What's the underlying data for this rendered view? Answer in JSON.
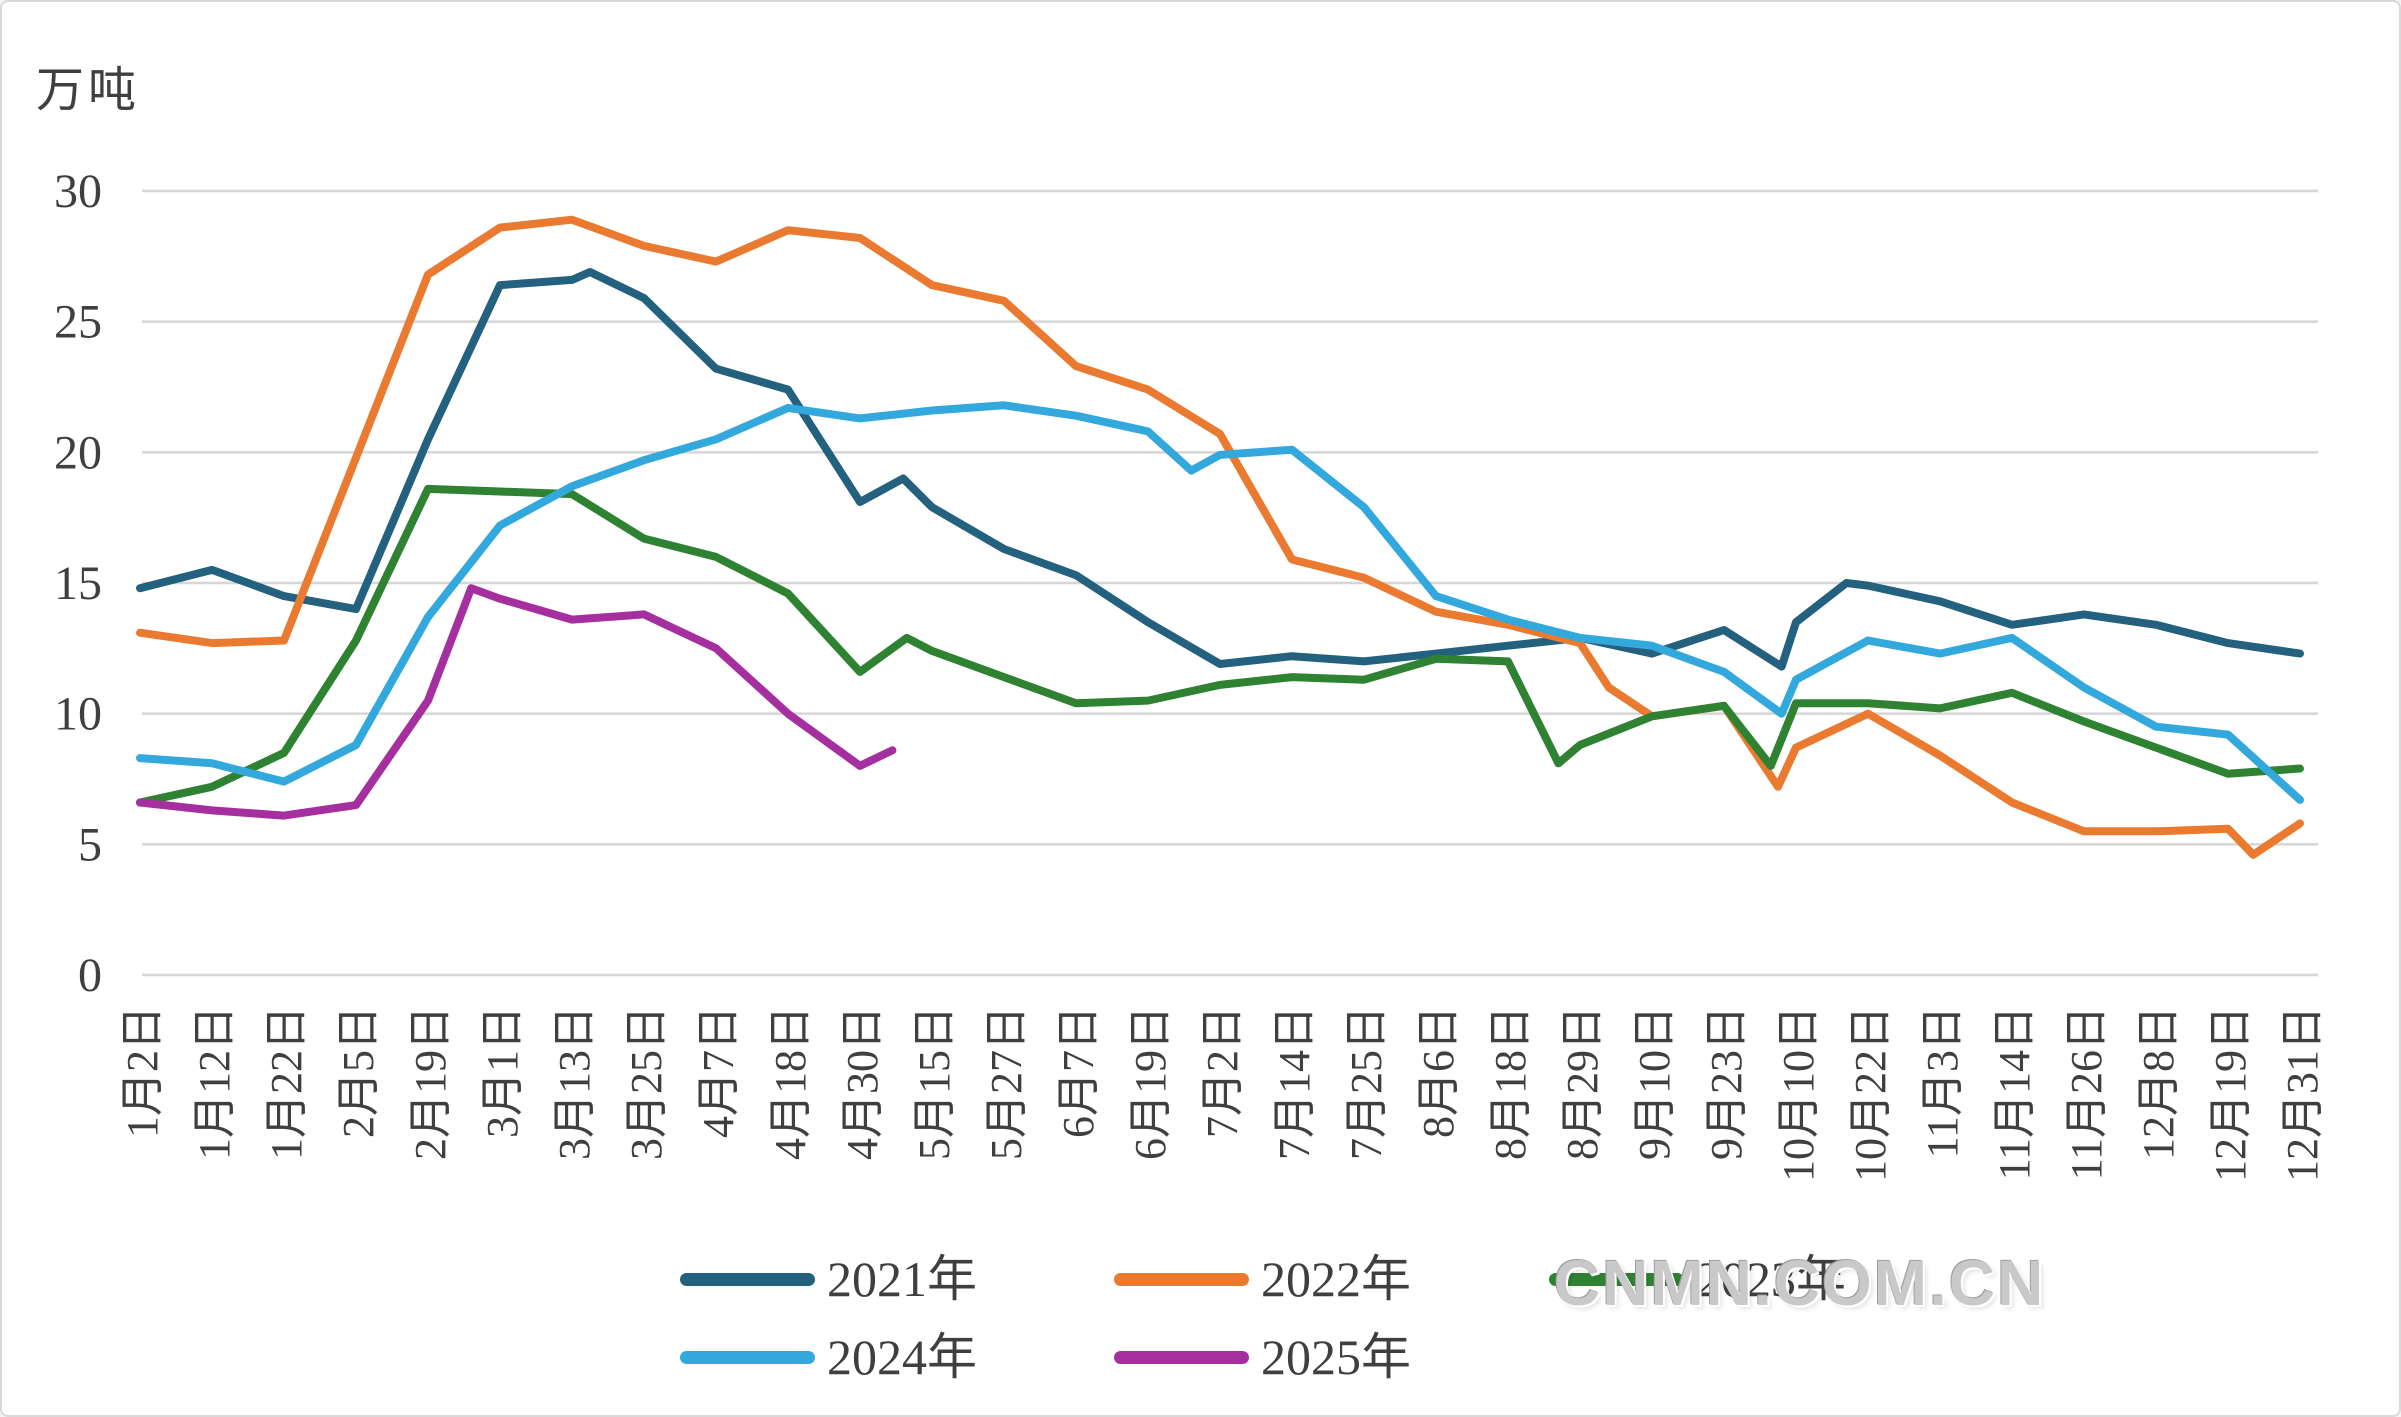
{
  "chart_data": {
    "type": "line",
    "title": "",
    "unit_label": "万吨",
    "xlabel": "",
    "ylabel": "万吨",
    "ylim": [
      0,
      30
    ],
    "yticks": [
      0,
      5,
      10,
      15,
      20,
      25,
      30
    ],
    "grid": true,
    "legend_position": "bottom",
    "categories": [
      "1月2日",
      "1月12日",
      "1月22日",
      "2月5日",
      "2月19日",
      "3月1日",
      "3月13日",
      "3月25日",
      "4月7日",
      "4月18日",
      "4月30日",
      "5月15日",
      "5月27日",
      "6月7日",
      "6月19日",
      "7月2日",
      "7月14日",
      "7月25日",
      "8月6日",
      "8月18日",
      "8月29日",
      "9月10日",
      "9月23日",
      "10月10日",
      "10月22日",
      "11月3日",
      "11月14日",
      "11月26日",
      "12月8日",
      "12月19日",
      "12月31日"
    ],
    "series": [
      {
        "name": "2021年",
        "color": "#23617e",
        "values": [
          14.8,
          15.5,
          14.5,
          14.0,
          20.5,
          26.4,
          26.6,
          25.9,
          23.2,
          22.4,
          18.1,
          17.9,
          16.3,
          15.3,
          13.5,
          11.9,
          12.2,
          12.0,
          12.3,
          12.6,
          12.9,
          12.3,
          13.2,
          13.5,
          14.9,
          14.3,
          13.4,
          13.8,
          13.4,
          12.7,
          12.3
        ],
        "extra_points": [
          [
            6.25,
            26.9
          ],
          [
            10.6,
            19.0
          ],
          [
            22.8,
            11.8
          ],
          [
            23.7,
            15.0
          ]
        ]
      },
      {
        "name": "2022年",
        "color": "#ea7a2f",
        "values": [
          13.1,
          12.7,
          12.8,
          19.8,
          26.8,
          28.6,
          28.9,
          27.9,
          27.3,
          28.5,
          28.2,
          26.4,
          25.8,
          23.3,
          22.4,
          20.7,
          15.9,
          15.2,
          13.9,
          13.4,
          12.7,
          9.9,
          10.3,
          8.7,
          10.0,
          8.4,
          6.6,
          5.5,
          5.5,
          5.6,
          5.8
        ],
        "extra_points": [
          [
            20.4,
            11.0
          ],
          [
            22.75,
            7.2
          ],
          [
            29.35,
            4.6
          ]
        ]
      },
      {
        "name": "2023年",
        "color": "#2e8232",
        "values": [
          6.6,
          7.2,
          8.5,
          12.8,
          18.6,
          18.5,
          18.4,
          16.7,
          16.0,
          14.6,
          11.6,
          12.4,
          11.4,
          10.4,
          10.5,
          11.1,
          11.4,
          11.3,
          12.1,
          12.0,
          8.8,
          9.9,
          10.3,
          10.4,
          10.4,
          10.2,
          10.8,
          9.7,
          8.7,
          7.7,
          7.9
        ],
        "extra_points": [
          [
            10.65,
            12.9
          ],
          [
            19.7,
            8.1
          ],
          [
            22.65,
            8.0
          ]
        ]
      },
      {
        "name": "2024年",
        "color": "#33a8dd",
        "values": [
          8.3,
          8.1,
          7.4,
          8.8,
          13.7,
          17.2,
          18.7,
          19.7,
          20.5,
          21.7,
          21.3,
          21.6,
          21.8,
          21.4,
          20.8,
          19.9,
          20.1,
          17.9,
          14.5,
          13.6,
          12.9,
          12.6,
          11.6,
          11.3,
          12.8,
          12.3,
          12.9,
          11.0,
          9.5,
          9.2,
          6.7
        ],
        "extra_points": [
          [
            14.6,
            19.3
          ],
          [
            22.8,
            10.0
          ]
        ]
      },
      {
        "name": "2025年",
        "color": "#a52f9f",
        "values": [
          6.6,
          6.3,
          6.1,
          6.5,
          10.5,
          14.4,
          13.6,
          13.8,
          12.5,
          10.0,
          8.0
        ],
        "extra_points": [
          [
            4.6,
            14.8
          ],
          [
            10.45,
            8.6
          ]
        ]
      }
    ]
  },
  "watermark": {
    "text": "CNMN.COM.CN"
  },
  "colors": {
    "gridline": "#d6d6d6",
    "axis_text": "#3f3f3f",
    "background": "#ffffff",
    "border": "#d9d9d9",
    "watermark_text": "#c9c9c9"
  }
}
